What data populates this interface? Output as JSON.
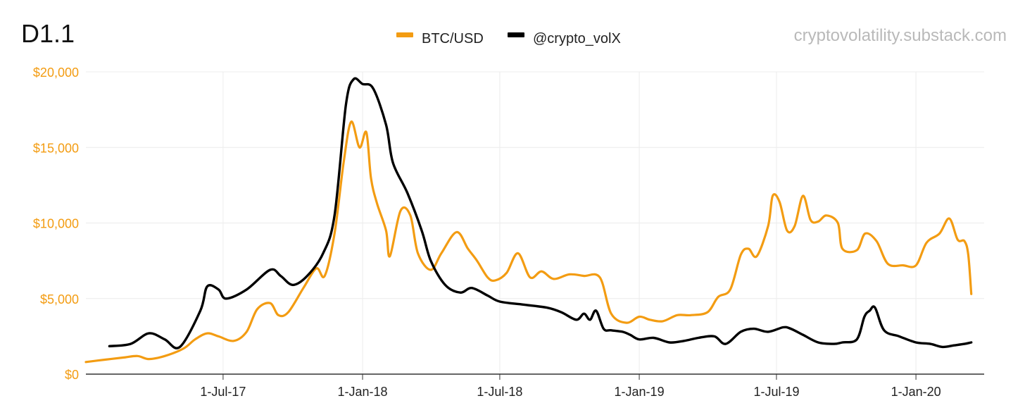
{
  "header": {
    "title": "D1.1",
    "watermark": "cryptovolatility.substack.com"
  },
  "colors": {
    "btc": "#f39c12",
    "volx": "#000000",
    "axis_text": "#f39c12",
    "grid": "#ececec"
  },
  "chart_data": {
    "type": "line",
    "x_type": "date",
    "legend_placement": "top-center",
    "grid": true,
    "ylim": [
      0,
      20000
    ],
    "xlim": [
      "2017-01-01",
      "2020-03-31"
    ],
    "y_ticks": [
      {
        "value": 0,
        "label": "$0"
      },
      {
        "value": 5000,
        "label": "$5,000"
      },
      {
        "value": 10000,
        "label": "$10,000"
      },
      {
        "value": 15000,
        "label": "$15,000"
      },
      {
        "value": 20000,
        "label": "$20,000"
      }
    ],
    "x_ticks": [
      {
        "date": "2017-07-01",
        "label": "1-Jul-17"
      },
      {
        "date": "2018-01-01",
        "label": "1-Jan-18"
      },
      {
        "date": "2018-07-01",
        "label": "1-Jul-18"
      },
      {
        "date": "2019-01-01",
        "label": "1-Jan-19"
      },
      {
        "date": "2019-07-01",
        "label": "1-Jul-19"
      },
      {
        "date": "2020-01-01",
        "label": "1-Jan-20"
      }
    ],
    "series": [
      {
        "name": "BTC/USD",
        "color": "#f39c12",
        "points": [
          [
            "2017-01-01",
            800
          ],
          [
            "2017-01-25",
            950
          ],
          [
            "2017-02-20",
            1100
          ],
          [
            "2017-03-10",
            1200
          ],
          [
            "2017-03-25",
            1000
          ],
          [
            "2017-04-15",
            1200
          ],
          [
            "2017-05-10",
            1700
          ],
          [
            "2017-05-25",
            2300
          ],
          [
            "2017-06-10",
            2700
          ],
          [
            "2017-06-25",
            2500
          ],
          [
            "2017-07-15",
            2200
          ],
          [
            "2017-08-01",
            2800
          ],
          [
            "2017-08-15",
            4300
          ],
          [
            "2017-09-01",
            4700
          ],
          [
            "2017-09-12",
            3900
          ],
          [
            "2017-09-25",
            4100
          ],
          [
            "2017-10-15",
            5700
          ],
          [
            "2017-11-01",
            7000
          ],
          [
            "2017-11-12",
            6500
          ],
          [
            "2017-11-25",
            9300
          ],
          [
            "2017-12-07",
            14000
          ],
          [
            "2017-12-17",
            16700
          ],
          [
            "2017-12-28",
            15000
          ],
          [
            "2018-01-06",
            16000
          ],
          [
            "2018-01-12",
            13000
          ],
          [
            "2018-01-20",
            11300
          ],
          [
            "2018-02-01",
            9500
          ],
          [
            "2018-02-06",
            7800
          ],
          [
            "2018-02-20",
            10800
          ],
          [
            "2018-03-05",
            10500
          ],
          [
            "2018-03-15",
            8000
          ],
          [
            "2018-04-01",
            6900
          ],
          [
            "2018-04-15",
            8000
          ],
          [
            "2018-05-05",
            9400
          ],
          [
            "2018-05-20",
            8300
          ],
          [
            "2018-06-01",
            7500
          ],
          [
            "2018-06-15",
            6400
          ],
          [
            "2018-06-25",
            6200
          ],
          [
            "2018-07-10",
            6700
          ],
          [
            "2018-07-25",
            8000
          ],
          [
            "2018-08-10",
            6400
          ],
          [
            "2018-08-25",
            6800
          ],
          [
            "2018-09-10",
            6300
          ],
          [
            "2018-10-01",
            6600
          ],
          [
            "2018-10-20",
            6500
          ],
          [
            "2018-11-10",
            6400
          ],
          [
            "2018-11-25",
            4000
          ],
          [
            "2018-12-15",
            3400
          ],
          [
            "2019-01-01",
            3800
          ],
          [
            "2019-01-15",
            3600
          ],
          [
            "2019-02-01",
            3500
          ],
          [
            "2019-02-20",
            3900
          ],
          [
            "2019-03-10",
            3900
          ],
          [
            "2019-04-01",
            4100
          ],
          [
            "2019-04-15",
            5100
          ],
          [
            "2019-05-01",
            5600
          ],
          [
            "2019-05-15",
            7900
          ],
          [
            "2019-05-25",
            8300
          ],
          [
            "2019-06-05",
            7800
          ],
          [
            "2019-06-20",
            9800
          ],
          [
            "2019-06-26",
            11800
          ],
          [
            "2019-07-05",
            11400
          ],
          [
            "2019-07-15",
            9500
          ],
          [
            "2019-07-25",
            9800
          ],
          [
            "2019-08-05",
            11800
          ],
          [
            "2019-08-15",
            10200
          ],
          [
            "2019-08-25",
            10100
          ],
          [
            "2019-09-05",
            10500
          ],
          [
            "2019-09-20",
            10000
          ],
          [
            "2019-09-26",
            8300
          ],
          [
            "2019-10-15",
            8200
          ],
          [
            "2019-10-26",
            9300
          ],
          [
            "2019-11-10",
            8800
          ],
          [
            "2019-11-25",
            7300
          ],
          [
            "2019-12-15",
            7200
          ],
          [
            "2020-01-01",
            7200
          ],
          [
            "2020-01-15",
            8700
          ],
          [
            "2020-02-01",
            9300
          ],
          [
            "2020-02-14",
            10300
          ],
          [
            "2020-02-25",
            8900
          ],
          [
            "2020-03-05",
            8800
          ],
          [
            "2020-03-10",
            7900
          ],
          [
            "2020-03-14",
            5300
          ]
        ]
      },
      {
        "name": "@crypto_volX",
        "color": "#000000",
        "points": [
          [
            "2017-02-01",
            1850
          ],
          [
            "2017-03-01",
            2000
          ],
          [
            "2017-03-25",
            2700
          ],
          [
            "2017-04-15",
            2300
          ],
          [
            "2017-05-05",
            1800
          ],
          [
            "2017-06-01",
            4200
          ],
          [
            "2017-06-10",
            5800
          ],
          [
            "2017-06-25",
            5600
          ],
          [
            "2017-07-05",
            5000
          ],
          [
            "2017-08-01",
            5600
          ],
          [
            "2017-09-01",
            6900
          ],
          [
            "2017-09-15",
            6500
          ],
          [
            "2017-10-01",
            5900
          ],
          [
            "2017-10-20",
            6500
          ],
          [
            "2017-11-10",
            8000
          ],
          [
            "2017-11-25",
            10500
          ],
          [
            "2017-12-10",
            17800
          ],
          [
            "2017-12-20",
            19500
          ],
          [
            "2018-01-01",
            19200
          ],
          [
            "2018-01-15",
            18900
          ],
          [
            "2018-02-01",
            16500
          ],
          [
            "2018-02-10",
            14000
          ],
          [
            "2018-03-01",
            12000
          ],
          [
            "2018-03-20",
            9500
          ],
          [
            "2018-04-01",
            7500
          ],
          [
            "2018-04-20",
            5900
          ],
          [
            "2018-05-10",
            5400
          ],
          [
            "2018-05-25",
            5700
          ],
          [
            "2018-06-15",
            5200
          ],
          [
            "2018-07-01",
            4800
          ],
          [
            "2018-08-01",
            4600
          ],
          [
            "2018-09-01",
            4400
          ],
          [
            "2018-09-20",
            4100
          ],
          [
            "2018-10-10",
            3600
          ],
          [
            "2018-10-20",
            4000
          ],
          [
            "2018-10-28",
            3600
          ],
          [
            "2018-11-05",
            4200
          ],
          [
            "2018-11-15",
            3000
          ],
          [
            "2018-11-25",
            2900
          ],
          [
            "2018-12-10",
            2800
          ],
          [
            "2018-12-20",
            2600
          ],
          [
            "2019-01-01",
            2300
          ],
          [
            "2019-01-20",
            2400
          ],
          [
            "2019-02-10",
            2100
          ],
          [
            "2019-03-01",
            2200
          ],
          [
            "2019-03-20",
            2400
          ],
          [
            "2019-04-10",
            2500
          ],
          [
            "2019-04-25",
            2000
          ],
          [
            "2019-05-15",
            2800
          ],
          [
            "2019-06-01",
            3000
          ],
          [
            "2019-06-20",
            2800
          ],
          [
            "2019-07-10",
            3100
          ],
          [
            "2019-07-20",
            3000
          ],
          [
            "2019-08-05",
            2600
          ],
          [
            "2019-08-25",
            2100
          ],
          [
            "2019-09-15",
            2000
          ],
          [
            "2019-09-26",
            2100
          ],
          [
            "2019-10-15",
            2300
          ],
          [
            "2019-10-25",
            3800
          ],
          [
            "2019-11-01",
            4200
          ],
          [
            "2019-11-08",
            4400
          ],
          [
            "2019-11-20",
            2900
          ],
          [
            "2019-12-10",
            2500
          ],
          [
            "2020-01-01",
            2100
          ],
          [
            "2020-01-20",
            2000
          ],
          [
            "2020-02-05",
            1800
          ],
          [
            "2020-02-20",
            1900
          ],
          [
            "2020-03-05",
            2000
          ],
          [
            "2020-03-14",
            2100
          ]
        ]
      }
    ]
  }
}
